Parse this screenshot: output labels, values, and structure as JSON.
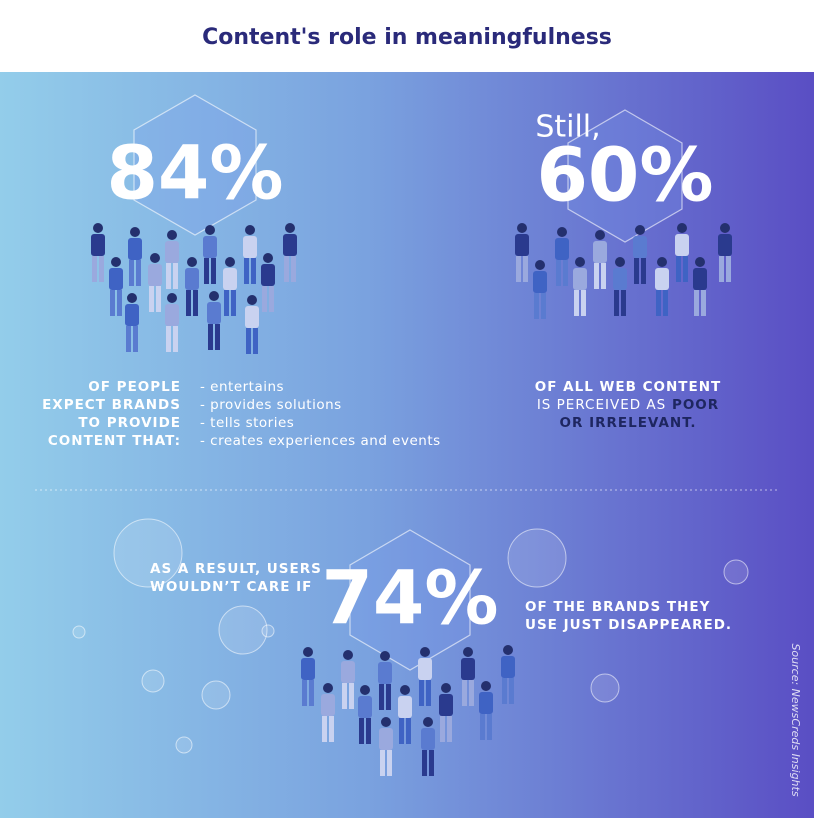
{
  "title": "Content's role in meaningfulness",
  "stat_1": {
    "value": "84%",
    "label_lines": [
      "OF PEOPLE",
      "EXPECT BRANDS",
      "TO PROVIDE",
      "CONTENT THAT:"
    ],
    "items": [
      "- entertains",
      "- provides solutions",
      "- tells stories",
      "- creates experiences and events"
    ]
  },
  "stat_2": {
    "intro": "Still,",
    "value": "60%",
    "label_lines": [
      "OF ALL WEB CONTENT",
      "IS PERCEIVED AS"
    ],
    "highlight_lines": [
      "POOR",
      "OR IRRELEVANT."
    ]
  },
  "stat_3": {
    "intro_lines": [
      "AS A RESULT, USERS",
      "WOULDN’T CARE IF"
    ],
    "value": "74%",
    "outro_lines": [
      "OF THE BRANDS THEY",
      "USE JUST DISAPPEARED."
    ]
  },
  "source": "Source: NewsCreds Insights"
}
